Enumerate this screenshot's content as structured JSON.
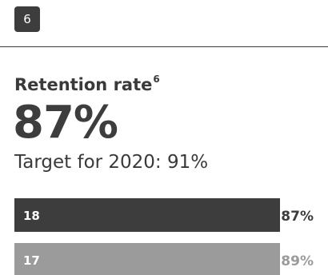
{
  "badge": {
    "label": "6"
  },
  "metric": {
    "title": "Retention rate",
    "footnote": "6",
    "value": "87%",
    "target_label": "Target for 2020: 91%"
  },
  "colors": {
    "dark": "#3d3d3d",
    "medium": "#9b9b9b",
    "bar_text": "#ffffff"
  },
  "chart_data": {
    "type": "bar",
    "orientation": "horizontal",
    "categories": [
      "18",
      "17"
    ],
    "values": [
      87,
      89
    ],
    "value_labels": [
      "87%",
      "89%"
    ],
    "title": "",
    "xlabel": "",
    "ylabel": "",
    "xlim": [
      0,
      100
    ],
    "grid": false,
    "legend": "none"
  }
}
